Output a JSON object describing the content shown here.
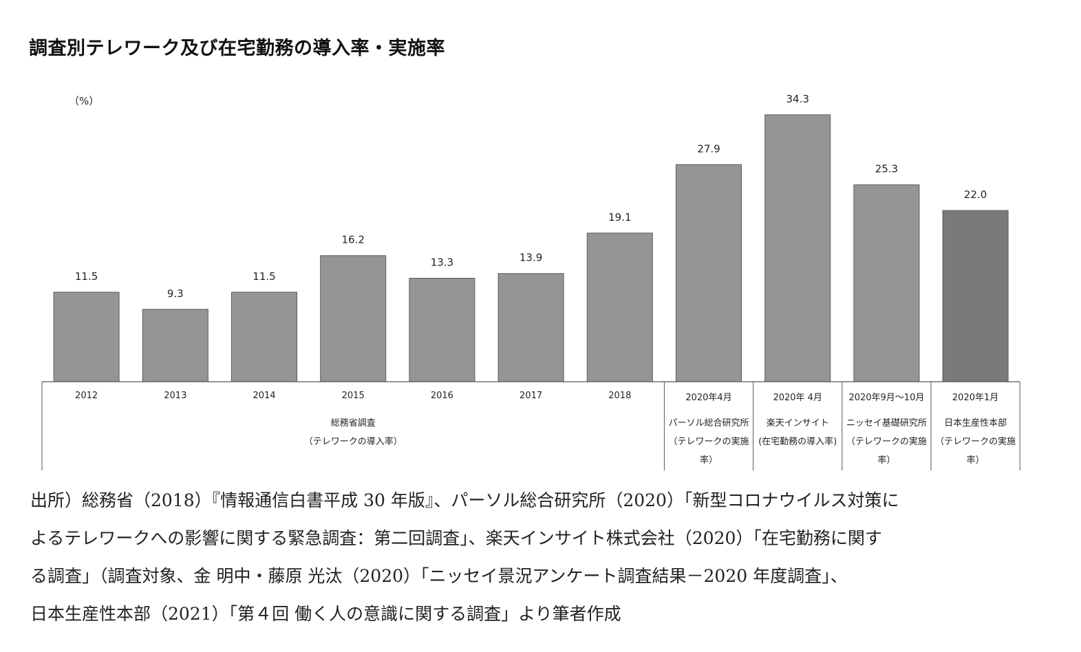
{
  "title": "調査別テレワーク及び在宅勤務の導入率・実施率",
  "chart_data": {
    "type": "bar",
    "unit_label": "（%）",
    "ylim": [
      0,
      38
    ],
    "grid": false,
    "bars": [
      {
        "x_label": "2012",
        "value": 11.5,
        "label": "11.5",
        "color": "#959595"
      },
      {
        "x_label": "2013",
        "value": 9.3,
        "label": "9.3",
        "color": "#959595"
      },
      {
        "x_label": "2014",
        "value": 11.5,
        "label": "11.5",
        "color": "#959595"
      },
      {
        "x_label": "2015",
        "value": 16.2,
        "label": "16.2",
        "color": "#959595"
      },
      {
        "x_label": "2016",
        "value": 13.3,
        "label": "13.3",
        "color": "#959595"
      },
      {
        "x_label": "2017",
        "value": 13.9,
        "label": "13.9",
        "color": "#959595"
      },
      {
        "x_label": "2018",
        "value": 19.1,
        "label": "19.1",
        "color": "#959595"
      },
      {
        "x_label": "2020年4月",
        "value": 27.9,
        "label": "27.9",
        "color": "#959595"
      },
      {
        "x_label": "2020年 4月",
        "value": 34.3,
        "label": "34.3",
        "color": "#959595"
      },
      {
        "x_label": "2020年9月～10月",
        "value": 25.3,
        "label": "25.3",
        "color": "#959595"
      },
      {
        "x_label": "2020年1月",
        "value": 22.0,
        "label": "22.0",
        "color": "#7a7a7a"
      }
    ],
    "groups": [
      {
        "from": 0,
        "to": 6,
        "lines": [
          "総務省調査",
          "（テレワークの導入率）"
        ]
      },
      {
        "from": 7,
        "to": 7,
        "lines": [
          "パーソル総合研究所",
          "（テレワークの実施",
          "率）"
        ]
      },
      {
        "from": 8,
        "to": 8,
        "lines": [
          "楽天インサイト",
          "(在宅勤務の導入率)"
        ]
      },
      {
        "from": 9,
        "to": 9,
        "lines": [
          "ニッセイ基礎研究所",
          "（テレワークの実施",
          "率）"
        ]
      },
      {
        "from": 10,
        "to": 10,
        "lines": [
          "日本生産性本部",
          "（テレワークの実施",
          "率）"
        ]
      }
    ]
  },
  "source": {
    "lines": [
      "出所）総務省（2018）『情報通信白書平成 30 年版』、パーソル総合研究所（2020）「新型コロナウイルス対策に",
      "よるテレワークへの影響に関する緊急調査：第二回調査」、楽天インサイト株式会社（2020）「在宅勤務に関す",
      "る調査」（調査対象、金 明中・藤原 光汰（2020）「ニッセイ景況アンケート調査結果－2020 年度調査」、",
      "日本生産性本部（2021）「第４回 働く人の意識に関する調査」より筆者作成"
    ]
  }
}
